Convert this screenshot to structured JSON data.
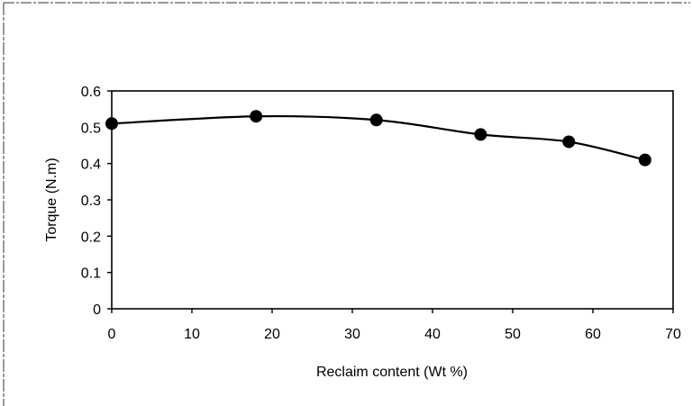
{
  "chart_data": {
    "type": "line",
    "title": "",
    "xlabel": "Reclaim content (Wt %)",
    "ylabel": "Torque (N.m)",
    "xlim": [
      0,
      70
    ],
    "ylim": [
      0,
      0.6
    ],
    "x_ticks": [
      "0",
      "10",
      "20",
      "30",
      "40",
      "50",
      "60",
      "70"
    ],
    "y_ticks": [
      "0",
      "0.1",
      "0.2",
      "0.3",
      "0.4",
      "0.5",
      "0.6"
    ],
    "grid": false,
    "legend": "none",
    "marker": "filled-circle",
    "line_color": "#000000",
    "series": [
      {
        "x": [
          0,
          18,
          33,
          46,
          57,
          66.5
        ],
        "y": [
          0.51,
          0.53,
          0.52,
          0.48,
          0.46,
          0.41
        ]
      }
    ]
  }
}
